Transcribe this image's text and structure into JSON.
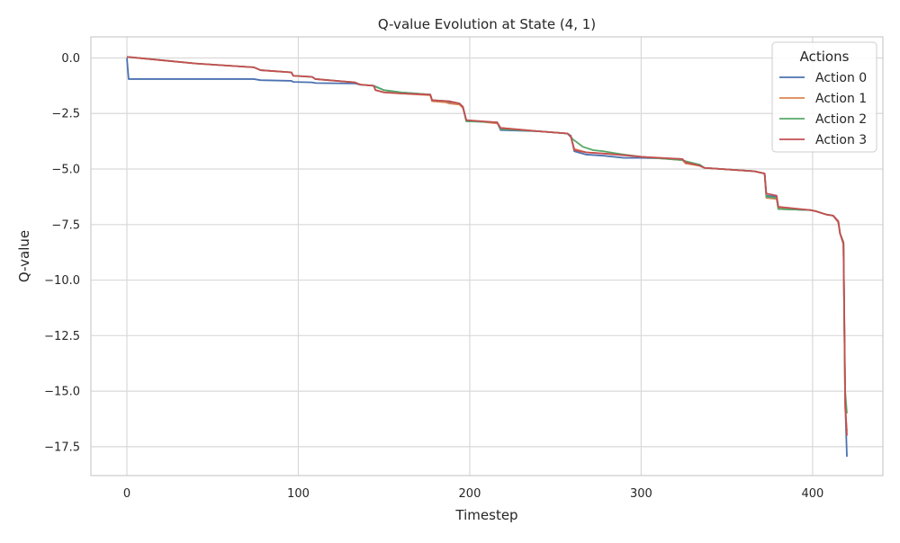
{
  "chart_data": {
    "type": "line",
    "title": "Q-value Evolution at State (4, 1)",
    "xlabel": "Timestep",
    "ylabel": "Q-value",
    "xlim": [
      -21,
      441
    ],
    "ylim": [
      -18.8,
      0.95
    ],
    "xticks": [
      0,
      100,
      200,
      300,
      400
    ],
    "xtick_labels": [
      "0",
      "100",
      "200",
      "300",
      "400"
    ],
    "yticks": [
      0.0,
      -2.5,
      -5.0,
      -7.5,
      -10.0,
      -12.5,
      -15.0,
      -17.5
    ],
    "ytick_labels": [
      "0.0",
      "−2.5",
      "−5.0",
      "−7.5",
      "−10.0",
      "−12.5",
      "−15.0",
      "−17.5"
    ],
    "grid": true,
    "legend": {
      "title": "Actions",
      "placement": "top-right"
    },
    "series": [
      {
        "name": "Action 0",
        "color": "#4c72b0",
        "points": [
          [
            0,
            0.0
          ],
          [
            1,
            -0.95
          ],
          [
            74,
            -0.95
          ],
          [
            78,
            -1.0
          ],
          [
            96,
            -1.03
          ],
          [
            97,
            -1.08
          ],
          [
            108,
            -1.1
          ],
          [
            110,
            -1.13
          ],
          [
            133,
            -1.15
          ],
          [
            136,
            -1.2
          ],
          [
            144,
            -1.25
          ],
          [
            147,
            -1.35
          ],
          [
            150,
            -1.45
          ],
          [
            160,
            -1.55
          ],
          [
            177,
            -1.65
          ],
          [
            178,
            -1.9
          ],
          [
            188,
            -2.0
          ],
          [
            194,
            -2.05
          ],
          [
            196,
            -2.2
          ],
          [
            198,
            -2.85
          ],
          [
            208,
            -2.87
          ],
          [
            216,
            -2.9
          ],
          [
            218,
            -3.25
          ],
          [
            240,
            -3.3
          ],
          [
            257,
            -3.4
          ],
          [
            259,
            -3.5
          ],
          [
            261,
            -4.2
          ],
          [
            268,
            -4.35
          ],
          [
            278,
            -4.4
          ],
          [
            290,
            -4.5
          ],
          [
            300,
            -4.5
          ],
          [
            324,
            -4.55
          ],
          [
            326,
            -4.75
          ],
          [
            334,
            -4.8
          ],
          [
            337,
            -4.95
          ],
          [
            366,
            -5.1
          ],
          [
            372,
            -5.2
          ],
          [
            373,
            -6.2
          ],
          [
            379,
            -6.25
          ],
          [
            380,
            -6.8
          ],
          [
            399,
            -6.85
          ],
          [
            402,
            -6.9
          ],
          [
            408,
            -7.05
          ],
          [
            412,
            -7.1
          ],
          [
            415,
            -7.4
          ],
          [
            416,
            -7.9
          ],
          [
            418,
            -8.3
          ],
          [
            419,
            -15.5
          ],
          [
            420,
            -17.95
          ]
        ]
      },
      {
        "name": "Action 1",
        "color": "#dd8452",
        "points": [
          [
            0,
            0.05
          ],
          [
            20,
            -0.1
          ],
          [
            40,
            -0.25
          ],
          [
            60,
            -0.35
          ],
          [
            74,
            -0.42
          ],
          [
            78,
            -0.55
          ],
          [
            96,
            -0.65
          ],
          [
            97,
            -0.8
          ],
          [
            108,
            -0.85
          ],
          [
            110,
            -0.95
          ],
          [
            133,
            -1.1
          ],
          [
            136,
            -1.2
          ],
          [
            144,
            -1.25
          ],
          [
            145,
            -1.45
          ],
          [
            150,
            -1.55
          ],
          [
            160,
            -1.6
          ],
          [
            177,
            -1.68
          ],
          [
            178,
            -1.95
          ],
          [
            186,
            -2.0
          ],
          [
            188,
            -2.05
          ],
          [
            194,
            -2.1
          ],
          [
            196,
            -2.25
          ],
          [
            198,
            -2.8
          ],
          [
            216,
            -2.95
          ],
          [
            218,
            -3.15
          ],
          [
            240,
            -3.3
          ],
          [
            257,
            -3.4
          ],
          [
            259,
            -3.55
          ],
          [
            261,
            -4.1
          ],
          [
            268,
            -4.25
          ],
          [
            278,
            -4.3
          ],
          [
            290,
            -4.35
          ],
          [
            300,
            -4.45
          ],
          [
            324,
            -4.6
          ],
          [
            326,
            -4.75
          ],
          [
            334,
            -4.85
          ],
          [
            337,
            -4.95
          ],
          [
            366,
            -5.1
          ],
          [
            372,
            -5.2
          ],
          [
            373,
            -6.3
          ],
          [
            379,
            -6.35
          ],
          [
            380,
            -6.75
          ],
          [
            399,
            -6.85
          ],
          [
            402,
            -6.9
          ],
          [
            408,
            -7.05
          ],
          [
            412,
            -7.1
          ],
          [
            415,
            -7.4
          ],
          [
            416,
            -7.9
          ],
          [
            418,
            -8.4
          ],
          [
            419,
            -15.8
          ],
          [
            420,
            -16.8
          ]
        ]
      },
      {
        "name": "Action 2",
        "color": "#55a868",
        "points": [
          [
            0,
            0.05
          ],
          [
            20,
            -0.1
          ],
          [
            40,
            -0.25
          ],
          [
            60,
            -0.35
          ],
          [
            74,
            -0.42
          ],
          [
            78,
            -0.55
          ],
          [
            96,
            -0.65
          ],
          [
            97,
            -0.8
          ],
          [
            108,
            -0.85
          ],
          [
            110,
            -0.95
          ],
          [
            133,
            -1.1
          ],
          [
            136,
            -1.2
          ],
          [
            144,
            -1.25
          ],
          [
            145,
            -1.3
          ],
          [
            150,
            -1.45
          ],
          [
            160,
            -1.55
          ],
          [
            177,
            -1.65
          ],
          [
            178,
            -1.9
          ],
          [
            188,
            -1.95
          ],
          [
            194,
            -2.05
          ],
          [
            196,
            -2.2
          ],
          [
            198,
            -2.85
          ],
          [
            216,
            -2.9
          ],
          [
            218,
            -3.2
          ],
          [
            240,
            -3.3
          ],
          [
            257,
            -3.4
          ],
          [
            260,
            -3.65
          ],
          [
            266,
            -4.0
          ],
          [
            272,
            -4.15
          ],
          [
            278,
            -4.2
          ],
          [
            290,
            -4.35
          ],
          [
            300,
            -4.45
          ],
          [
            324,
            -4.6
          ],
          [
            326,
            -4.65
          ],
          [
            334,
            -4.8
          ],
          [
            337,
            -4.95
          ],
          [
            366,
            -5.1
          ],
          [
            372,
            -5.2
          ],
          [
            373,
            -6.25
          ],
          [
            379,
            -6.3
          ],
          [
            380,
            -6.8
          ],
          [
            399,
            -6.85
          ],
          [
            402,
            -6.9
          ],
          [
            408,
            -7.05
          ],
          [
            412,
            -7.1
          ],
          [
            415,
            -7.35
          ],
          [
            416,
            -7.9
          ],
          [
            418,
            -8.3
          ],
          [
            419,
            -15.0
          ],
          [
            420,
            -16.0
          ]
        ]
      },
      {
        "name": "Action 3",
        "color": "#c44e52",
        "points": [
          [
            0,
            0.05
          ],
          [
            20,
            -0.1
          ],
          [
            40,
            -0.25
          ],
          [
            60,
            -0.35
          ],
          [
            74,
            -0.42
          ],
          [
            78,
            -0.55
          ],
          [
            96,
            -0.65
          ],
          [
            97,
            -0.8
          ],
          [
            108,
            -0.85
          ],
          [
            110,
            -0.95
          ],
          [
            133,
            -1.1
          ],
          [
            136,
            -1.2
          ],
          [
            144,
            -1.25
          ],
          [
            145,
            -1.45
          ],
          [
            150,
            -1.55
          ],
          [
            160,
            -1.6
          ],
          [
            177,
            -1.65
          ],
          [
            178,
            -1.9
          ],
          [
            188,
            -1.95
          ],
          [
            194,
            -2.05
          ],
          [
            196,
            -2.2
          ],
          [
            198,
            -2.8
          ],
          [
            216,
            -2.9
          ],
          [
            218,
            -3.15
          ],
          [
            240,
            -3.3
          ],
          [
            257,
            -3.4
          ],
          [
            259,
            -3.55
          ],
          [
            261,
            -4.15
          ],
          [
            268,
            -4.25
          ],
          [
            278,
            -4.3
          ],
          [
            290,
            -4.38
          ],
          [
            300,
            -4.45
          ],
          [
            324,
            -4.55
          ],
          [
            326,
            -4.7
          ],
          [
            334,
            -4.85
          ],
          [
            337,
            -4.95
          ],
          [
            366,
            -5.1
          ],
          [
            372,
            -5.2
          ],
          [
            373,
            -6.1
          ],
          [
            379,
            -6.2
          ],
          [
            380,
            -6.7
          ],
          [
            399,
            -6.85
          ],
          [
            402,
            -6.9
          ],
          [
            408,
            -7.05
          ],
          [
            412,
            -7.1
          ],
          [
            415,
            -7.35
          ],
          [
            416,
            -7.9
          ],
          [
            418,
            -8.35
          ],
          [
            419,
            -15.5
          ],
          [
            420,
            -17.0
          ]
        ]
      }
    ]
  }
}
